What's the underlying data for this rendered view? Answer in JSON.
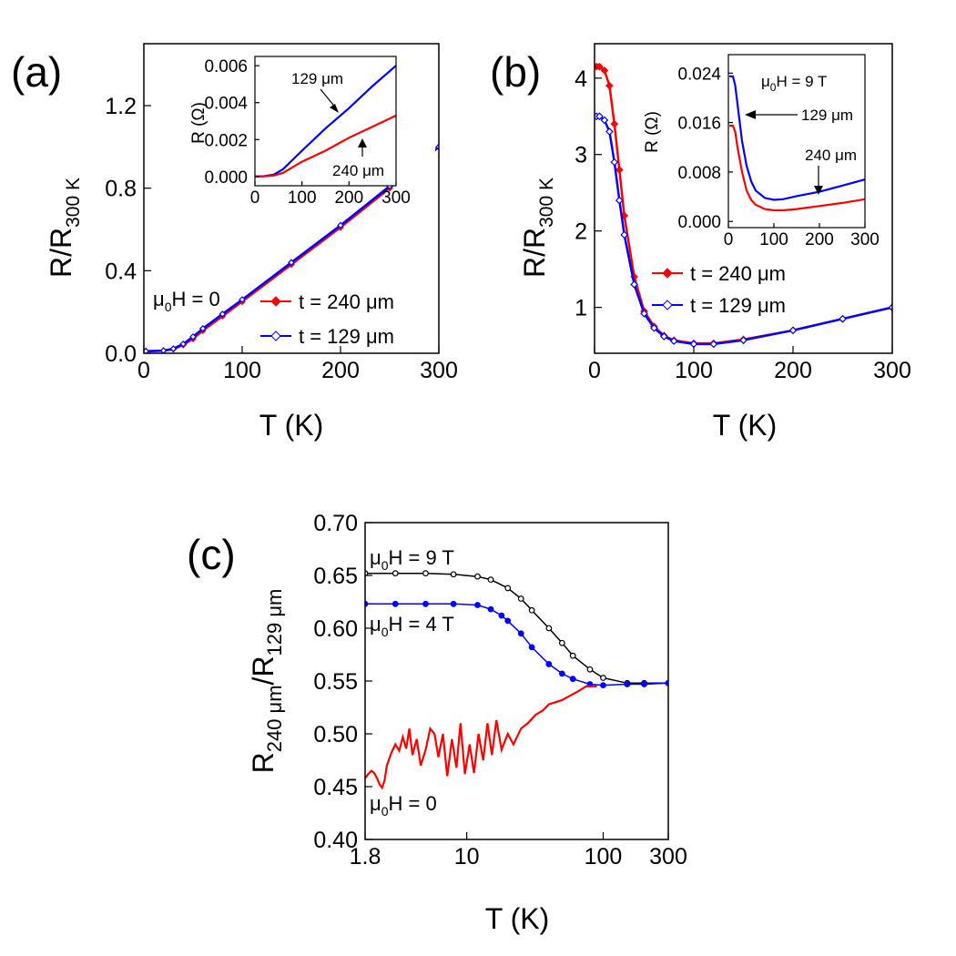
{
  "chart_data": [
    {
      "id": "a",
      "panel_label": "(a)",
      "type": "line",
      "xlabel": "T (K)",
      "ylabel_main": "R/R",
      "ylabel_sub": "300 K",
      "xlim": [
        0,
        300
      ],
      "ylim": [
        0,
        1.5
      ],
      "xticks": [
        "0",
        "100",
        "200",
        "300"
      ],
      "yticks": [
        "0.0",
        "0.4",
        "0.8",
        "1.2"
      ],
      "annotation_mu": "μ",
      "annotation_sub": "0",
      "annotation_rest": "H = 0",
      "legend_placement": "bottom-right",
      "series": [
        {
          "name": "t = 240 μm",
          "color": "#ff0000",
          "marker": "diamond-filled",
          "x": [
            2,
            20,
            30,
            40,
            50,
            60,
            80,
            100,
            150,
            200,
            250,
            300
          ],
          "y": [
            0.01,
            0.012,
            0.02,
            0.04,
            0.07,
            0.11,
            0.18,
            0.25,
            0.43,
            0.61,
            0.8,
            1.0
          ]
        },
        {
          "name": "t = 129 μm",
          "color": "#0000ff",
          "marker": "diamond-open",
          "x": [
            2,
            20,
            30,
            40,
            50,
            60,
            80,
            100,
            150,
            200,
            250,
            300
          ],
          "y": [
            0.01,
            0.013,
            0.022,
            0.045,
            0.08,
            0.12,
            0.19,
            0.26,
            0.44,
            0.62,
            0.81,
            1.0
          ]
        }
      ],
      "inset": {
        "xlabel": "",
        "ylabel": "R (Ω)",
        "xlim": [
          0,
          300
        ],
        "ylim": [
          -0.0005,
          0.0065
        ],
        "xticks": [
          "0",
          "100",
          "200",
          "300"
        ],
        "yticks": [
          "0.000",
          "0.002",
          "0.004",
          "0.006"
        ],
        "labels": [
          "129 μm",
          "240 μm"
        ],
        "series": [
          {
            "color": "#0000ff",
            "x": [
              0,
              20,
              40,
              60,
              80,
              100,
              150,
              200,
              250,
              300
            ],
            "y": [
              0,
              2e-05,
              0.0001,
              0.0004,
              0.0009,
              0.0014,
              0.0026,
              0.0037,
              0.0049,
              0.006
            ]
          },
          {
            "color": "#ff0000",
            "x": [
              0,
              20,
              40,
              60,
              80,
              100,
              150,
              200,
              250,
              300
            ],
            "y": [
              0,
              1e-05,
              5e-05,
              0.0002,
              0.0005,
              0.0008,
              0.0014,
              0.0021,
              0.0027,
              0.0033
            ]
          }
        ]
      }
    },
    {
      "id": "b",
      "panel_label": "(b)",
      "type": "line",
      "xlabel": "T (K)",
      "ylabel_main": "R/R",
      "ylabel_sub": "300 K",
      "xlim": [
        0,
        300
      ],
      "ylim": [
        0.4,
        4.45
      ],
      "xticks": [
        "0",
        "100",
        "200",
        "300"
      ],
      "yticks": [
        "1",
        "2",
        "3",
        "4"
      ],
      "legend_placement": "center-right",
      "series": [
        {
          "name": "t = 240 μm",
          "color": "#ff0000",
          "marker": "diamond-filled",
          "x": [
            2,
            5,
            10,
            15,
            20,
            25,
            30,
            40,
            50,
            60,
            70,
            80,
            100,
            120,
            150,
            200,
            250,
            300
          ],
          "y": [
            4.15,
            4.15,
            4.1,
            3.9,
            3.4,
            2.8,
            2.2,
            1.4,
            0.95,
            0.75,
            0.63,
            0.57,
            0.53,
            0.53,
            0.58,
            0.7,
            0.85,
            1.0
          ]
        },
        {
          "name": "t = 129 μm",
          "color": "#0000ff",
          "marker": "diamond-open",
          "x": [
            2,
            5,
            10,
            15,
            20,
            25,
            30,
            40,
            50,
            60,
            70,
            80,
            100,
            120,
            150,
            200,
            250,
            300
          ],
          "y": [
            3.5,
            3.5,
            3.45,
            3.3,
            2.9,
            2.4,
            1.95,
            1.3,
            0.92,
            0.73,
            0.62,
            0.56,
            0.52,
            0.52,
            0.57,
            0.7,
            0.85,
            1.0
          ]
        }
      ],
      "inset": {
        "xlabel": "",
        "ylabel": "R (Ω)",
        "xlim": [
          0,
          300
        ],
        "ylim": [
          -0.001,
          0.027
        ],
        "xticks": [
          "0",
          "100",
          "200",
          "300"
        ],
        "yticks": [
          "0.000",
          "0.008",
          "0.016",
          "0.024"
        ],
        "title_mu": "μ",
        "title_sub": "0",
        "title_rest": "H = 9 T",
        "labels": [
          "129 μm",
          "240 μm"
        ],
        "series": [
          {
            "color": "#0000ff",
            "x": [
              2,
              10,
              15,
              20,
              30,
              40,
              50,
              60,
              80,
              100,
              120,
              150,
              200,
              250,
              300
            ],
            "y": [
              0.0235,
              0.0235,
              0.022,
              0.019,
              0.013,
              0.009,
              0.0065,
              0.005,
              0.0038,
              0.0035,
              0.0036,
              0.0041,
              0.0048,
              0.0058,
              0.0068
            ]
          },
          {
            "color": "#ff0000",
            "x": [
              2,
              10,
              15,
              20,
              30,
              40,
              50,
              60,
              80,
              100,
              120,
              150,
              200,
              250,
              300
            ],
            "y": [
              0.0155,
              0.0155,
              0.0145,
              0.012,
              0.008,
              0.005,
              0.0035,
              0.0027,
              0.002,
              0.0018,
              0.0018,
              0.002,
              0.0025,
              0.003,
              0.0036
            ]
          }
        ]
      }
    },
    {
      "id": "c",
      "panel_label": "(c)",
      "type": "line",
      "xscale": "log",
      "xlabel": "T (K)",
      "ylabel_parts": [
        "R",
        "240 μm",
        "/R",
        "129 μm"
      ],
      "xlim": [
        1.8,
        300
      ],
      "ylim": [
        0.4,
        0.7
      ],
      "xticks": [
        "1.8",
        "10",
        "100",
        "300"
      ],
      "xtick_values": [
        1.8,
        10,
        100,
        300
      ],
      "yticks": [
        "0.40",
        "0.45",
        "0.50",
        "0.55",
        "0.60",
        "0.65",
        "0.70"
      ],
      "series": [
        {
          "name": "μ0H = 9 T",
          "label_mu": "μ",
          "label_sub": "0",
          "label_rest": "H = 9 T",
          "color": "#000000",
          "marker": "circle-open",
          "x": [
            1.8,
            3,
            5,
            8,
            12,
            15,
            20,
            25,
            30,
            40,
            50,
            60,
            80,
            100,
            150,
            200,
            300
          ],
          "y": [
            0.652,
            0.652,
            0.652,
            0.651,
            0.649,
            0.646,
            0.638,
            0.628,
            0.617,
            0.6,
            0.586,
            0.574,
            0.561,
            0.553,
            0.548,
            0.548,
            0.548
          ]
        },
        {
          "name": "μ0H = 4 T",
          "label_mu": "μ",
          "label_sub": "0",
          "label_rest": "H = 4 T",
          "color": "#0000ff",
          "marker": "circle-filled",
          "x": [
            1.8,
            3,
            5,
            8,
            12,
            15,
            18,
            20,
            25,
            30,
            40,
            50,
            60,
            80,
            100,
            150,
            200,
            300
          ],
          "y": [
            0.623,
            0.623,
            0.623,
            0.623,
            0.622,
            0.618,
            0.612,
            0.607,
            0.595,
            0.582,
            0.566,
            0.557,
            0.552,
            0.547,
            0.546,
            0.547,
            0.547,
            0.548
          ]
        },
        {
          "name": "μ0H = 0",
          "label_mu": "μ",
          "label_sub": "0",
          "label_rest": "H = 0",
          "color": "#ff0000",
          "marker": "none",
          "x": [
            1.8,
            1.9,
            2.0,
            2.1,
            2.2,
            2.3,
            2.4,
            2.5,
            2.6,
            2.8,
            3.0,
            3.2,
            3.4,
            3.6,
            3.8,
            4.0,
            4.3,
            4.6,
            5.0,
            5.4,
            5.8,
            6.2,
            6.7,
            7.2,
            7.8,
            8.4,
            9.0,
            9.7,
            10.5,
            11.3,
            12.2,
            13.2,
            14.2,
            15.3,
            16.5,
            18,
            20,
            22,
            25,
            28,
            32,
            36,
            40,
            45,
            50,
            57,
            65,
            75,
            90
          ],
          "y": [
            0.458,
            0.462,
            0.465,
            0.463,
            0.458,
            0.452,
            0.449,
            0.456,
            0.47,
            0.482,
            0.49,
            0.484,
            0.497,
            0.486,
            0.505,
            0.48,
            0.495,
            0.47,
            0.485,
            0.505,
            0.5,
            0.478,
            0.5,
            0.46,
            0.495,
            0.468,
            0.51,
            0.462,
            0.49,
            0.463,
            0.5,
            0.475,
            0.51,
            0.48,
            0.513,
            0.485,
            0.5,
            0.49,
            0.505,
            0.51,
            0.518,
            0.522,
            0.528,
            0.53,
            0.532,
            0.536,
            0.54,
            0.545,
            0.545
          ]
        }
      ]
    }
  ]
}
